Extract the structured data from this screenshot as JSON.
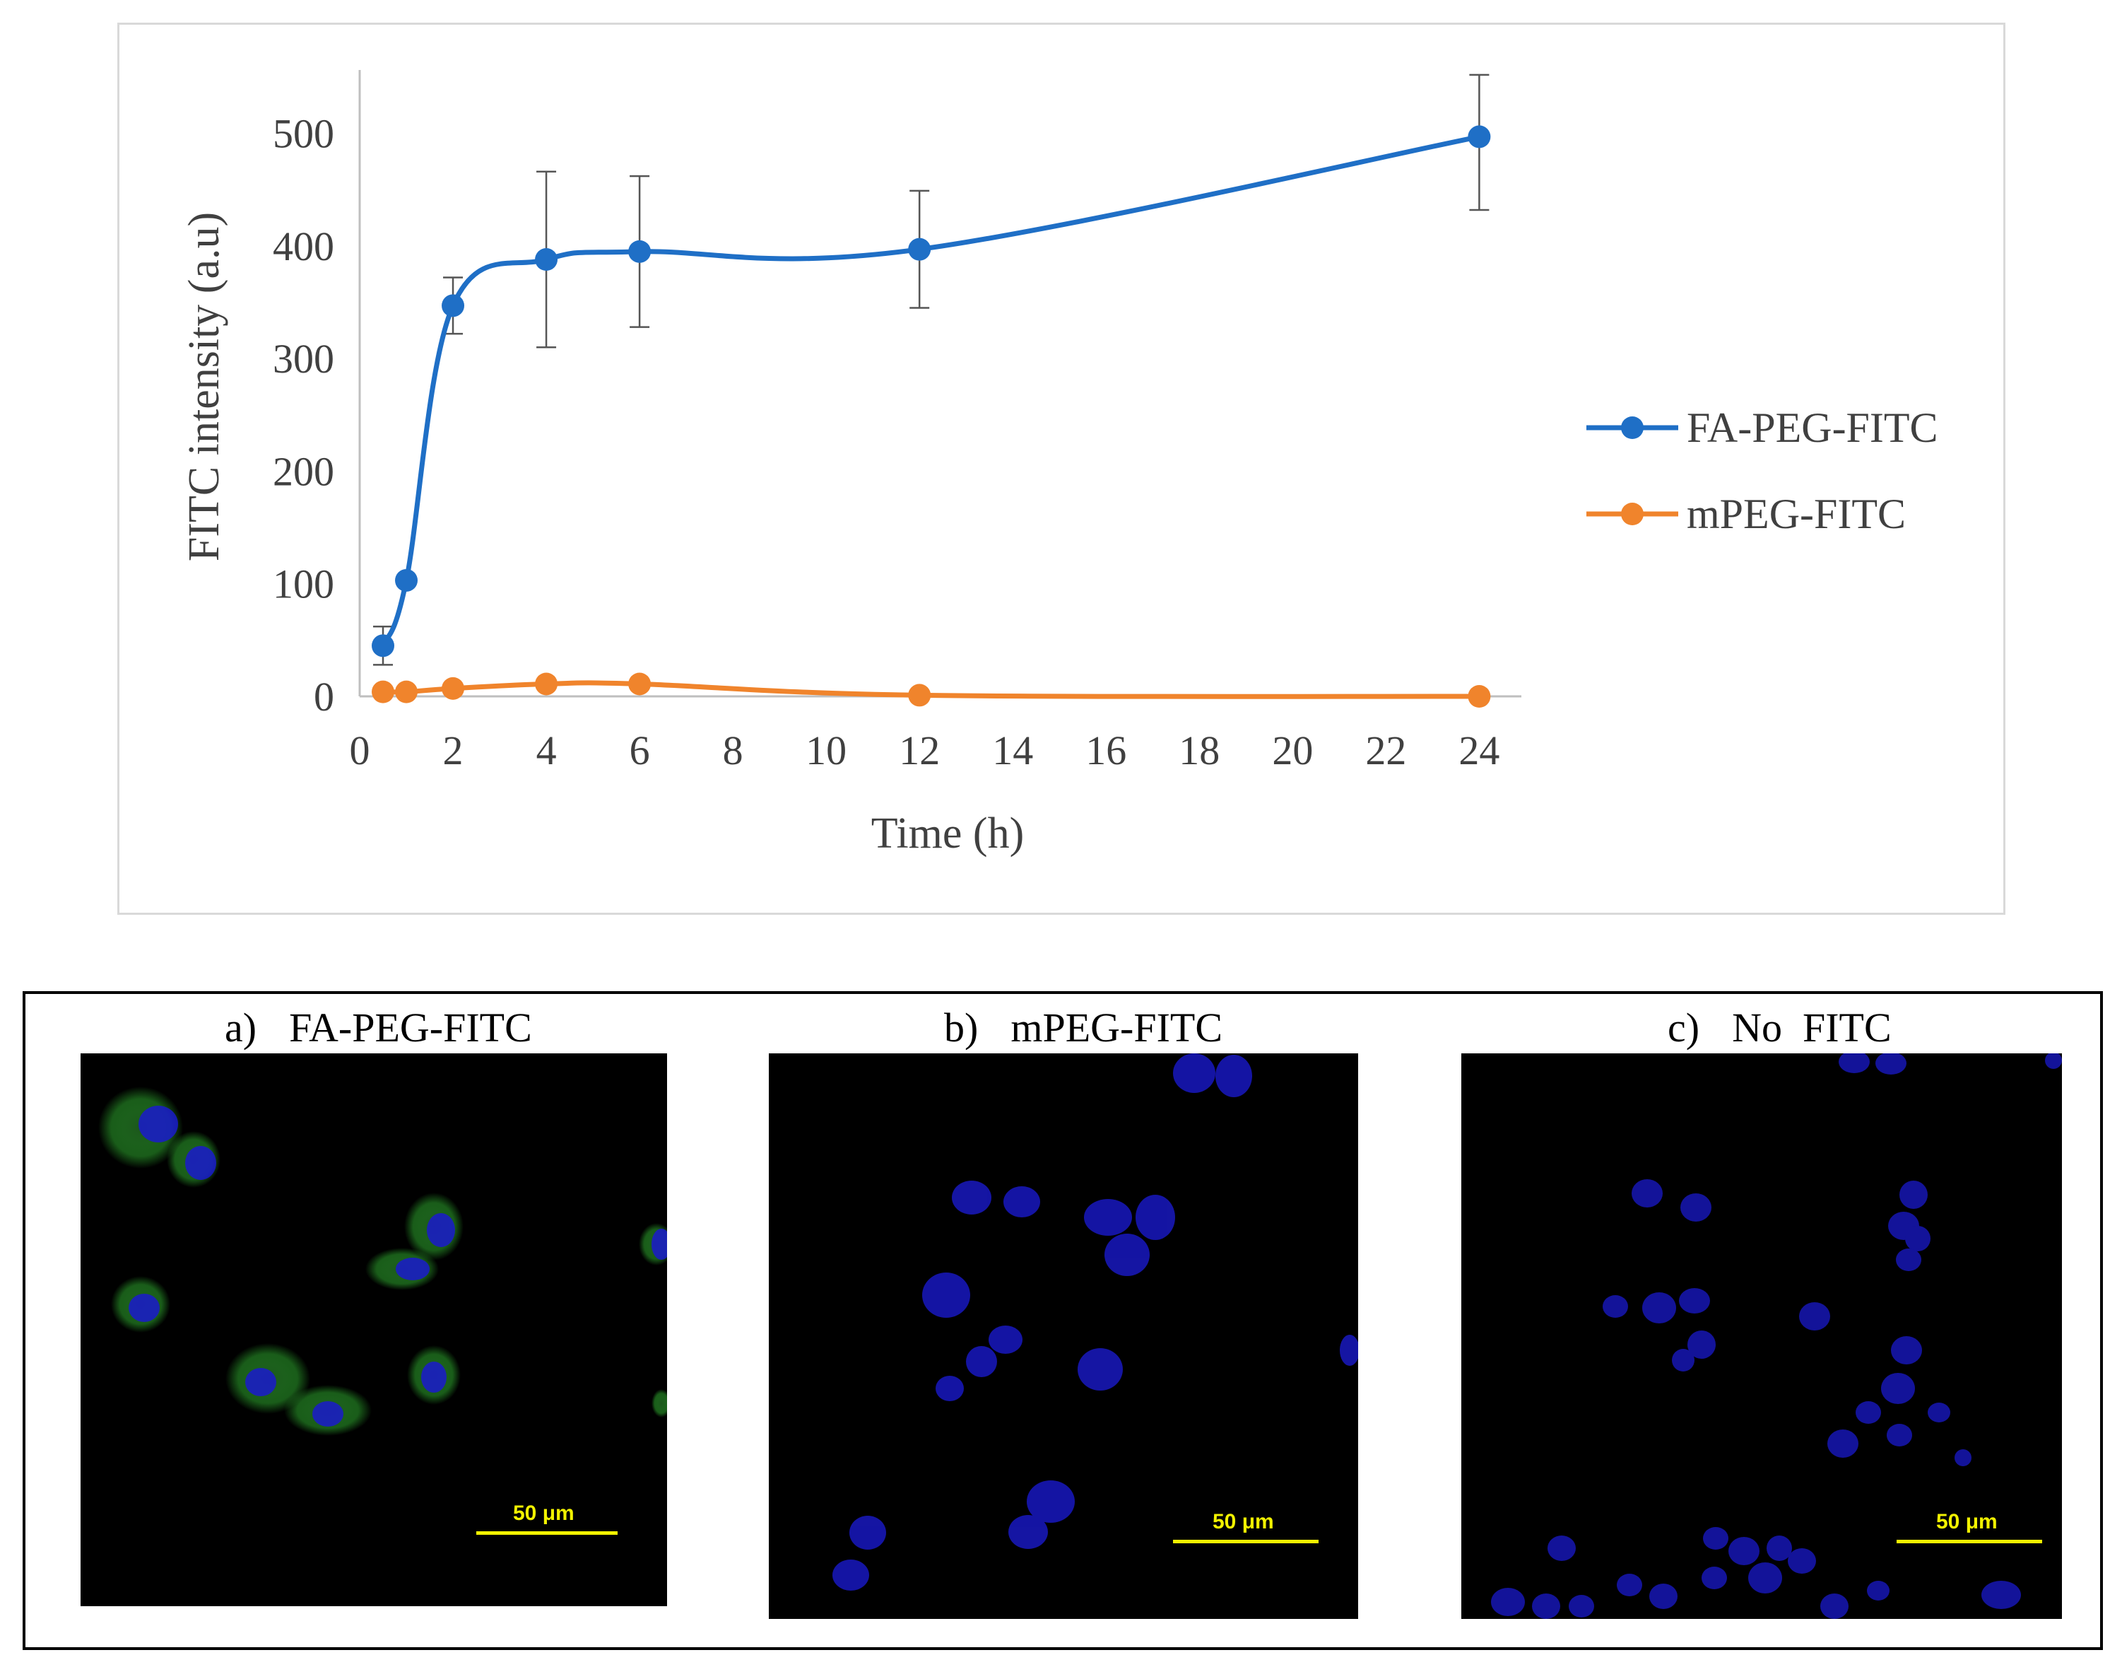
{
  "chart_data": {
    "type": "line",
    "title": "",
    "xlabel": "Time (h)",
    "ylabel": "FITC intensity (a.u)",
    "xlim": [
      0,
      24.6
    ],
    "ylim": [
      0,
      550
    ],
    "x_ticks": [
      0,
      2,
      4,
      6,
      8,
      10,
      12,
      14,
      16,
      18,
      20,
      22,
      24
    ],
    "y_ticks": [
      0,
      100,
      200,
      300,
      400,
      500
    ],
    "grid": false,
    "legend_position": "right",
    "series": [
      {
        "name": "FA-PEG-FITC",
        "color": "#1f6fc6",
        "x": [
          0.5,
          1,
          2,
          4,
          6,
          12,
          24
        ],
        "y": [
          45,
          103,
          347,
          388,
          395,
          397,
          497
        ],
        "err_low": [
          17,
          0,
          25,
          78,
          67,
          52,
          65
        ],
        "err_high": [
          17,
          0,
          25,
          78,
          67,
          52,
          55
        ]
      },
      {
        "name": "mPEG-FITC",
        "color": "#f0842c",
        "x": [
          0.5,
          1,
          2,
          4,
          6,
          12,
          24
        ],
        "y": [
          4,
          4,
          7,
          11,
          11,
          1,
          0
        ]
      }
    ]
  },
  "micrographs": [
    {
      "label": "a)",
      "title": "FA-PEG-FITC",
      "scale_bar": "50 μm"
    },
    {
      "label": "b)",
      "title": "mPEG-FITC",
      "scale_bar": "50 μm"
    },
    {
      "label": "c)",
      "title": "No  FITC",
      "scale_bar": "50 μm"
    }
  ],
  "colors": {
    "nucleus": "#1a1acc",
    "fitc": "#2ea82e",
    "scale_bar": "#f2f200"
  }
}
